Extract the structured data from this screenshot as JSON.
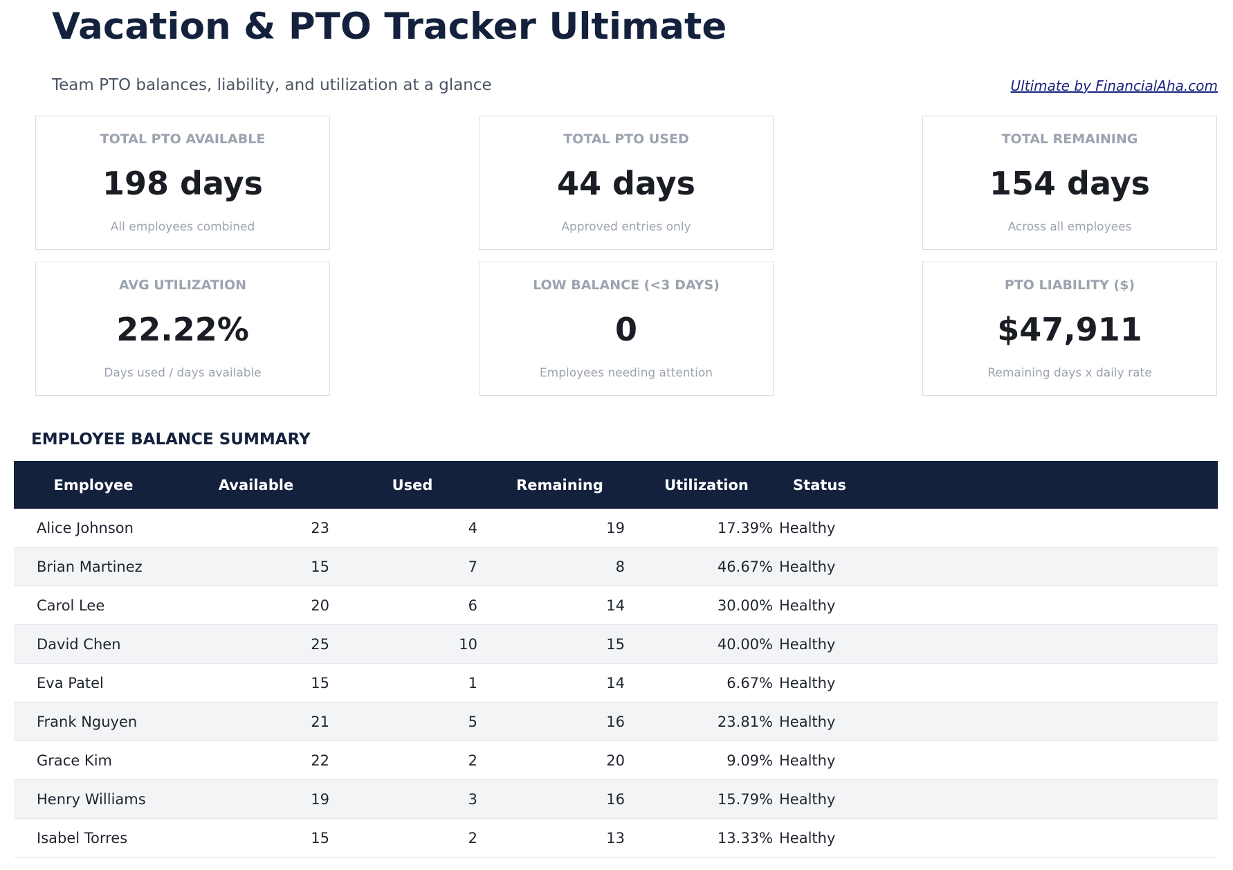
{
  "header": {
    "title": "Vacation & PTO Tracker Ultimate",
    "subtitle": "Team PTO balances, liability, and utilization at a glance",
    "link": "Ultimate by FinancialAha.com"
  },
  "cards": [
    {
      "label": "TOTAL PTO AVAILABLE",
      "value": "198 days",
      "note": "All employees combined"
    },
    {
      "label": "TOTAL PTO USED",
      "value": "44 days",
      "note": "Approved entries only"
    },
    {
      "label": "TOTAL REMAINING",
      "value": "154 days",
      "note": "Across all employees"
    },
    {
      "label": "AVG UTILIZATION",
      "value": "22.22%",
      "note": "Days used / days available"
    },
    {
      "label": "LOW BALANCE (<3 DAYS)",
      "value": "0",
      "note": "Employees needing attention"
    },
    {
      "label": "PTO LIABILITY ($)",
      "value": "$47,911",
      "note": "Remaining days x daily rate"
    }
  ],
  "table": {
    "title": "EMPLOYEE BALANCE SUMMARY",
    "columns": [
      "Employee",
      "Available",
      "Used",
      "Remaining",
      "Utilization",
      "Status"
    ],
    "rows": [
      [
        "Alice Johnson",
        23,
        4,
        19,
        "17.39%",
        "Healthy"
      ],
      [
        "Brian Martinez",
        15,
        7,
        8,
        "46.67%",
        "Healthy"
      ],
      [
        "Carol Lee",
        20,
        6,
        14,
        "30.00%",
        "Healthy"
      ],
      [
        "David Chen",
        25,
        10,
        15,
        "40.00%",
        "Healthy"
      ],
      [
        "Eva Patel",
        15,
        1,
        14,
        "6.67%",
        "Healthy"
      ],
      [
        "Frank Nguyen",
        21,
        5,
        16,
        "23.81%",
        "Healthy"
      ],
      [
        "Grace Kim",
        22,
        2,
        20,
        "9.09%",
        "Healthy"
      ],
      [
        "Henry Williams",
        19,
        3,
        16,
        "15.79%",
        "Healthy"
      ],
      [
        "Isabel Torres",
        15,
        2,
        13,
        "13.33%",
        "Healthy"
      ]
    ]
  }
}
